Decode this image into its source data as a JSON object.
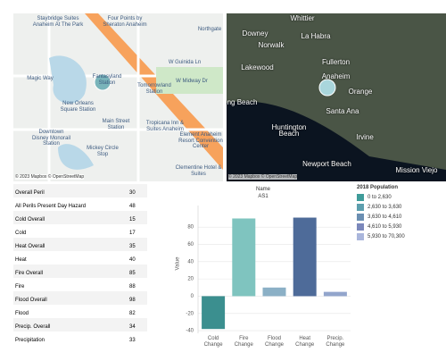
{
  "maps": [
    {
      "labels": [
        "Staybridge Suites Anaheim At The Park",
        "Four Points by Sheraton Anaheim",
        "Northgate",
        "W Midway Dr",
        "W Guinida Ln",
        "Magic Way",
        "Fantasyland Station",
        "Tomorrowland Station",
        "New Orleans Square Station",
        "Main Street Station",
        "Downtown Disney Monorail Station",
        "Tropicana Inn & Suites Anaheim",
        "Mickey Circle Stop",
        "Element Anaheim Resort Convention Center",
        "Clementine Hotel & Suites"
      ],
      "attribution": "© 2023 Mapbox © OpenStreetMap"
    },
    {
      "labels": [
        "Whittier",
        "Downey",
        "Norwalk",
        "La Habra",
        "Fullerton",
        "Lakewood",
        "Anaheim",
        "Orange",
        "ng Beach",
        "Santa Ana",
        "Huntington Beach",
        "Irvine",
        "Newport Beach",
        "Mission Viejo"
      ],
      "attribution": "© 2023 Mapbox © OpenStreetMap"
    }
  ],
  "table": {
    "rows": [
      [
        "Overall Peril",
        "30"
      ],
      [
        "All Perils Present Day Hazard",
        "48"
      ],
      [
        "Cold Overall",
        "15"
      ],
      [
        "Cold",
        "17"
      ],
      [
        "Heat Overall",
        "35"
      ],
      [
        "Heat",
        "40"
      ],
      [
        "Fire Overall",
        "85"
      ],
      [
        "Fire",
        "88"
      ],
      [
        "Flood Overall",
        "98"
      ],
      [
        "Flood",
        "82"
      ],
      [
        "Precip. Overall",
        "34"
      ],
      [
        "Precipitation",
        "33"
      ]
    ]
  },
  "chart_data": {
    "type": "bar",
    "title": "Name",
    "subtitle": "AS1",
    "y_label": "Value",
    "categories": [
      "Cold Change",
      "Fire Change",
      "Flood Change",
      "Heat Change",
      "Precip. Change"
    ],
    "values": [
      -38,
      90,
      10,
      91,
      5
    ],
    "colors": [
      "#3b8f8f",
      "#7fc4bf",
      "#8bb0c6",
      "#4e6b99",
      "#92a5cc"
    ],
    "ylim": [
      -43,
      105
    ],
    "yticks": [
      -40,
      -20,
      0,
      20,
      40,
      60,
      80
    ],
    "grid": true
  },
  "legend": {
    "title": "2018 Population",
    "items": [
      {
        "label": "0 to 2,630",
        "color": "#3f9c9a"
      },
      {
        "label": "2,630 to 3,630",
        "color": "#5d9fae"
      },
      {
        "label": "3,630 to 4,610",
        "color": "#6b8fb2"
      },
      {
        "label": "4,610 to 5,930",
        "color": "#7b88bb"
      },
      {
        "label": "5,930 to 70,300",
        "color": "#aab6dc"
      }
    ]
  }
}
